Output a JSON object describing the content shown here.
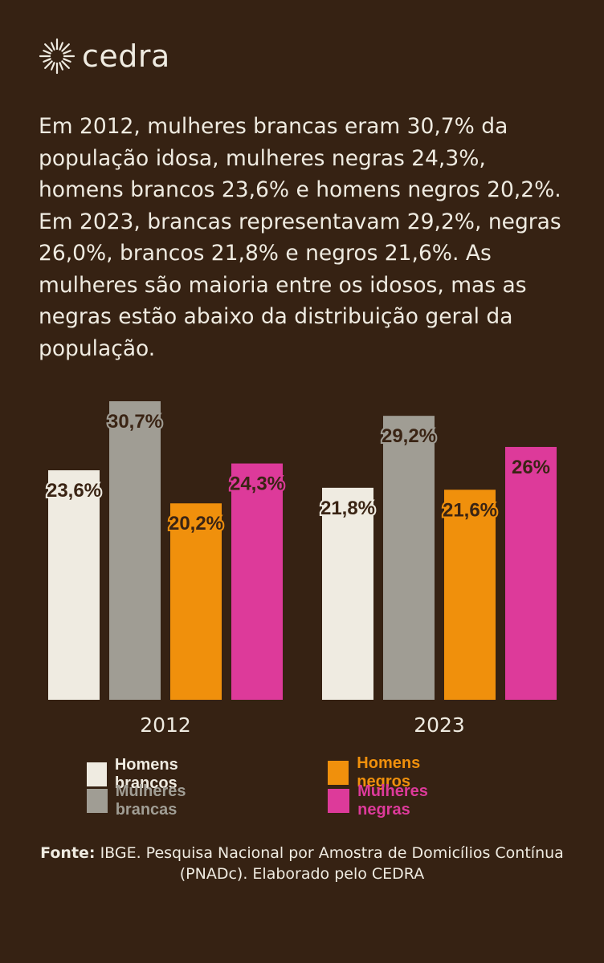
{
  "brand": {
    "name": "cedra"
  },
  "intro_text": "Em 2012, mulheres brancas eram 30,7% da população idosa, mulheres negras 24,3%, homens brancos 23,6% e homens negros 20,2%. Em 2023, brancas representavam 29,2%, negras 26,0%, brancos 21,8% e negros 21,6%. As mulheres são maioria entre os idosos, mas as negras estão abaixo da distribuição geral da população.",
  "chart_data": {
    "type": "bar",
    "categories": [
      "2012",
      "2023"
    ],
    "series": [
      {
        "name": "Homens brancos",
        "color": "#efebe1",
        "values": [
          23.6,
          21.8
        ],
        "labels": [
          "23,6%",
          "21,8%"
        ]
      },
      {
        "name": "Mulheres brancas",
        "color": "#a09d94",
        "values": [
          30.7,
          29.2
        ],
        "labels": [
          "30,7%",
          "29,2%"
        ]
      },
      {
        "name": "Homens negros",
        "color": "#f0900c",
        "values": [
          20.2,
          21.6
        ],
        "labels": [
          "20,2%",
          "21,6%"
        ]
      },
      {
        "name": "Mulheres negras",
        "color": "#dd3a9a",
        "values": [
          24.3,
          26.0
        ],
        "labels": [
          "24,3%",
          "26%"
        ]
      }
    ],
    "ylim": [
      0,
      30.7
    ],
    "grid": false,
    "legend": "bottom"
  },
  "source": {
    "prefix": "Fonte:",
    "text": " IBGE. Pesquisa Nacional por Amostra de Domicílios Contínua (PNADc). Elaborado pelo CEDRA"
  }
}
